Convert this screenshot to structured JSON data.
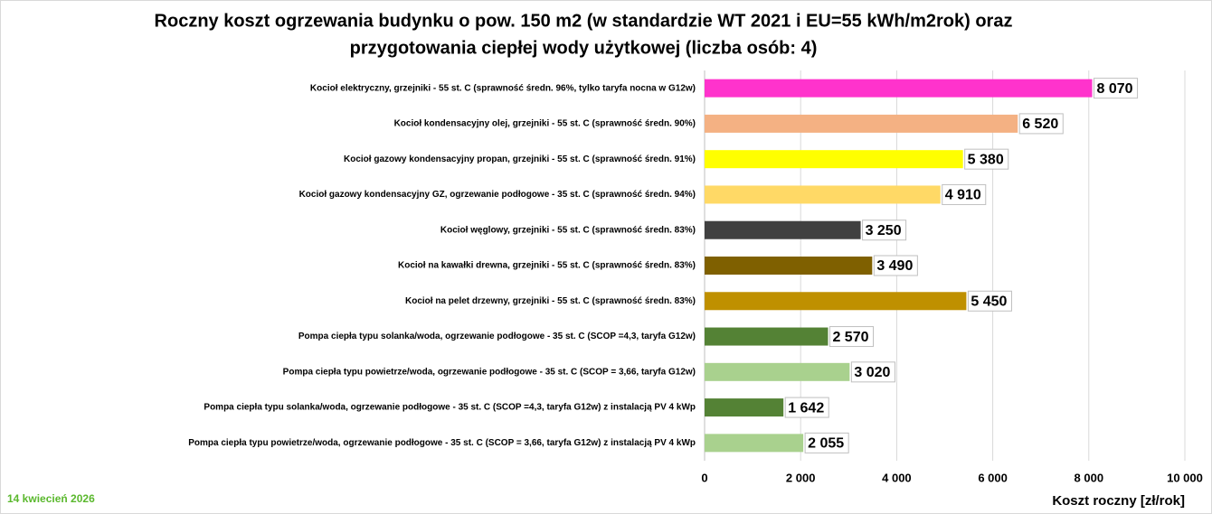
{
  "chart_data": {
    "type": "barh",
    "title": [
      "Roczny koszt ogrzewania budynku o pow. 150 m2 (w standardzie WT 2021 i EU=55 kWh/m2rok) oraz",
      "przygotowania ciepłej wody użytkowej (liczba osób: 4)"
    ],
    "x_label": "Koszt roczny [zł/rok]",
    "footer": "14 kwiecień 2026",
    "categories": [
      "Kocioł  elektryczny,  grzejniki - 55 st. C  (sprawność średn. 96%, tylko taryfa nocna w G12w)",
      "Kocioł  kondensacyjny olej,  grzejniki - 55 st. C (sprawność średn. 90%)",
      "Kocioł gazowy kondensacyjny propan, grzejniki - 55 st. C (sprawność średn. 91%)",
      "Kocioł gazowy kondensacyjny GZ, ogrzewanie podłogowe - 35 st. C (sprawność średn. 94%)",
      "Kocioł węglowy,  grzejniki - 55 st. C (sprawność średn. 83%)",
      "Kocioł na kawałki drewna, grzejniki - 55 st. C (sprawność średn. 83%)",
      "Kocioł na pelet drzewny, grzejniki - 55 st. C (sprawność średn. 83%)",
      "Pompa ciepła typu solanka/woda, ogrzewanie podłogowe - 35 st. C (SCOP =4,3, taryfa G12w)",
      "Pompa ciepła typu powietrze/woda, ogrzewanie podłogowe - 35 st. C (SCOP = 3,66, taryfa G12w)",
      "Pompa ciepła typu solanka/woda, ogrzewanie podłogowe - 35 st. C (SCOP =4,3, taryfa G12w) z instalacją PV 4 kWp",
      "Pompa ciepła typu powietrze/woda, ogrzewanie podłogowe - 35 st. C (SCOP = 3,66, taryfa G12w) z instalacją PV 4 kWp"
    ],
    "values": [
      8070,
      6520,
      5380,
      4910,
      3250,
      3490,
      5450,
      2570,
      3020,
      1642,
      2055
    ],
    "value_labels": [
      "8 070",
      "6 520",
      "5 380",
      "4 910",
      "3 250",
      "3 490",
      "5 450",
      "2 570",
      "3 020",
      "1 642",
      "2 055"
    ],
    "colors": [
      "#ff33cc",
      "#f4b183",
      "#ffff00",
      "#ffd966",
      "#404040",
      "#7f6000",
      "#bf9000",
      "#548235",
      "#a9d18e",
      "#548235",
      "#a9d18e"
    ],
    "xlim": [
      0,
      10000
    ],
    "xticks": [
      0,
      {
        "value": 2000,
        "label": "2 000"
      },
      {
        "value": 4000,
        "label": "4 000"
      },
      {
        "value": 6000,
        "label": "6 000"
      },
      {
        "value": 8000,
        "label": "8 000"
      },
      {
        "value": 10000,
        "label": "10 000"
      }
    ],
    "grid": true
  }
}
